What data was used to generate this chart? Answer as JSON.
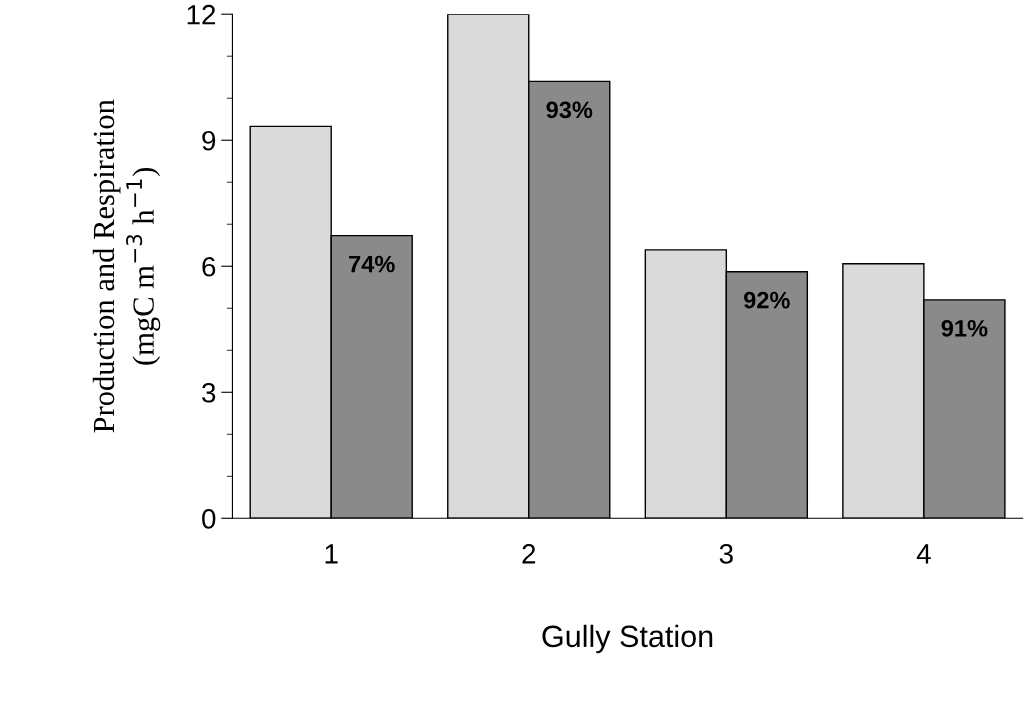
{
  "chart_data": {
    "type": "bar",
    "xlabel": "Gully Station",
    "ylabel": "Production and Respiration\n(mgC m$^{−3}$ h$^{−1}$)",
    "categories": [
      "1",
      "2",
      "3",
      "4"
    ],
    "series": [
      {
        "color": "#dadada",
        "values": [
          9.33,
          12.0,
          6.39,
          6.06
        ]
      },
      {
        "color": "#8a8a8a",
        "values": [
          6.73,
          10.4,
          5.87,
          5.2
        ]
      }
    ],
    "annotations": [
      {
        "text": "74%",
        "x": "1",
        "y": 6.73
      },
      {
        "text": "93%",
        "x": "2",
        "y": 10.4
      },
      {
        "text": "92%",
        "x": "3",
        "y": 5.87
      },
      {
        "text": "91%",
        "x": "4",
        "y": 5.2
      }
    ],
    "ylim": [
      0,
      12
    ],
    "yticks": [
      0,
      3,
      6,
      9,
      12
    ],
    "grid": false,
    "legend": false
  }
}
